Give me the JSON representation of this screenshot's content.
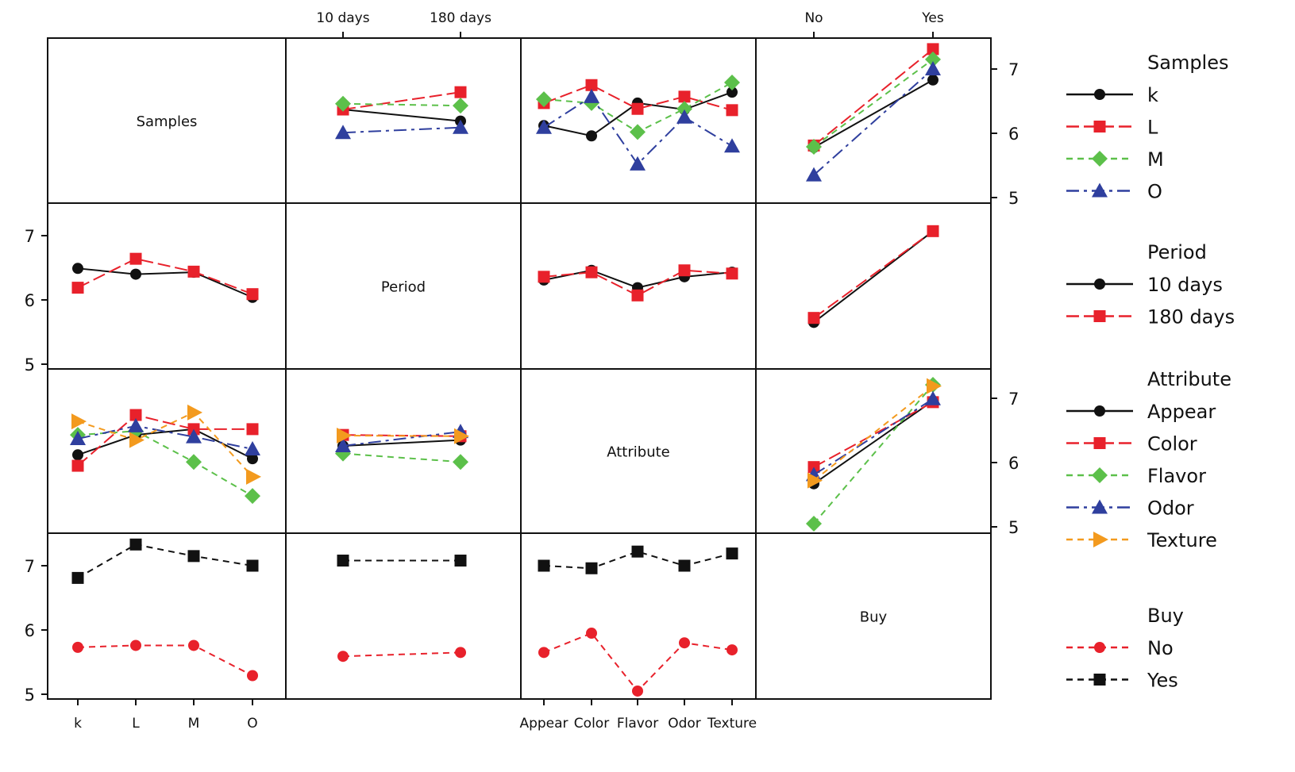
{
  "chart_data": {
    "type": "line",
    "kind": "interaction plot matrix",
    "y_range": [
      5,
      7.4
    ],
    "y_ticks": [
      5,
      6,
      7
    ],
    "grid": false,
    "legend_placement": "right",
    "factors": [
      {
        "name": "Samples",
        "levels": [
          "k",
          "L",
          "M",
          "O"
        ]
      },
      {
        "name": "Period",
        "levels": [
          "10 days",
          "180 days"
        ]
      },
      {
        "name": "Attribute",
        "levels": [
          "Appear",
          "Color",
          "Flavor",
          "Odor",
          "Texture"
        ]
      },
      {
        "name": "Buy",
        "levels": [
          "No",
          "Yes"
        ]
      }
    ],
    "series_styles": {
      "Samples": [
        {
          "name": "k",
          "color": "#111111",
          "marker": "circle",
          "dash": "solid"
        },
        {
          "name": "L",
          "color": "#e8212b",
          "marker": "square",
          "dash": "long-dash"
        },
        {
          "name": "M",
          "color": "#5cc04a",
          "marker": "diamond",
          "dash": "dash"
        },
        {
          "name": "O",
          "color": "#2f3f9e",
          "marker": "triangle-up",
          "dash": "dash-dot"
        }
      ],
      "Period": [
        {
          "name": "10 days",
          "color": "#111111",
          "marker": "circle",
          "dash": "solid"
        },
        {
          "name": "180 days",
          "color": "#e8212b",
          "marker": "square",
          "dash": "long-dash"
        }
      ],
      "Attribute": [
        {
          "name": "Appear",
          "color": "#111111",
          "marker": "circle",
          "dash": "solid"
        },
        {
          "name": "Color",
          "color": "#e8212b",
          "marker": "square",
          "dash": "long-dash"
        },
        {
          "name": "Flavor",
          "color": "#5cc04a",
          "marker": "diamond",
          "dash": "dash"
        },
        {
          "name": "Odor",
          "color": "#2f3f9e",
          "marker": "triangle-up",
          "dash": "dash-dot"
        },
        {
          "name": "Texture",
          "color": "#f39a1e",
          "marker": "triangle-right",
          "dash": "dash"
        }
      ],
      "Buy": [
        {
          "name": "No",
          "color": "#e8212b",
          "marker": "circle",
          "dash": "dash"
        },
        {
          "name": "Yes",
          "color": "#111111",
          "marker": "square",
          "dash": "dash"
        }
      ]
    },
    "panels": [
      {
        "trace": "Samples",
        "x": "Period",
        "series": [
          [
            6.37,
            6.19
          ],
          [
            6.37,
            6.64
          ],
          [
            6.46,
            6.43
          ],
          [
            6.01,
            6.09
          ]
        ]
      },
      {
        "trace": "Samples",
        "x": "Attribute",
        "series": [
          [
            6.12,
            5.96,
            6.47,
            6.37,
            6.64
          ],
          [
            6.47,
            6.75,
            6.38,
            6.57,
            6.36
          ],
          [
            6.53,
            6.47,
            6.02,
            6.38,
            6.79
          ],
          [
            6.09,
            6.57,
            5.52,
            6.25,
            5.8
          ]
        ]
      },
      {
        "trace": "Samples",
        "x": "Buy",
        "series": [
          [
            5.78,
            6.83
          ],
          [
            5.81,
            7.31
          ],
          [
            5.79,
            7.15
          ],
          [
            5.35,
            7.0
          ]
        ]
      },
      {
        "trace": "Period",
        "x": "Samples",
        "series": [
          [
            6.49,
            6.4,
            6.43,
            6.04
          ],
          [
            6.19,
            6.64,
            6.44,
            6.09
          ]
        ]
      },
      {
        "trace": "Period",
        "x": "Attribute",
        "series": [
          [
            6.31,
            6.46,
            6.19,
            6.36,
            6.43
          ],
          [
            6.36,
            6.43,
            6.07,
            6.46,
            6.41
          ]
        ]
      },
      {
        "trace": "Period",
        "x": "Buy",
        "series": [
          [
            5.65,
            7.07
          ],
          [
            5.72,
            7.07
          ]
        ]
      },
      {
        "trace": "Attribute",
        "x": "Samples",
        "series": [
          [
            6.12,
            6.43,
            6.52,
            6.06
          ],
          [
            5.95,
            6.74,
            6.52,
            6.52
          ],
          [
            6.43,
            6.49,
            6.01,
            5.48
          ],
          [
            6.37,
            6.57,
            6.4,
            6.21
          ],
          [
            6.64,
            6.35,
            6.78,
            5.78
          ]
        ]
      },
      {
        "trace": "Attribute",
        "x": "Period",
        "series": [
          [
            6.26,
            6.35
          ],
          [
            6.43,
            6.41
          ],
          [
            6.14,
            6.01
          ],
          [
            6.26,
            6.48
          ],
          [
            6.42,
            6.41
          ]
        ]
      },
      {
        "trace": "Attribute",
        "x": "Buy",
        "series": [
          [
            5.67,
            6.96
          ],
          [
            5.93,
            6.94
          ],
          [
            5.05,
            7.21
          ],
          [
            5.81,
            6.99
          ],
          [
            5.72,
            7.19
          ]
        ]
      },
      {
        "trace": "Buy",
        "x": "Samples",
        "series": [
          [
            5.73,
            5.76,
            5.76,
            5.29
          ],
          [
            6.81,
            7.33,
            7.15,
            7.0
          ]
        ]
      },
      {
        "trace": "Buy",
        "x": "Period",
        "series": [
          [
            5.59,
            5.65
          ],
          [
            7.08,
            7.08
          ]
        ]
      },
      {
        "trace": "Buy",
        "x": "Attribute",
        "series": [
          [
            5.65,
            5.95,
            5.05,
            5.8,
            5.69
          ],
          [
            7.0,
            6.96,
            7.22,
            7.0,
            7.19
          ]
        ]
      }
    ]
  }
}
